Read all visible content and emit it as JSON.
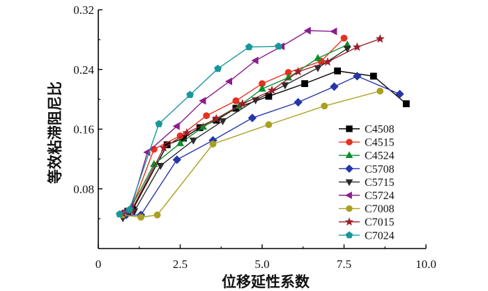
{
  "chart_data": {
    "type": "line",
    "title": "",
    "xlabel": "位移延性系数",
    "ylabel": "等效粘滞阻尼比",
    "xlim": [
      0,
      10.0
    ],
    "ylim": [
      0,
      0.32
    ],
    "xticks": [
      "0",
      "2.5",
      "5.0",
      "7.5",
      "10.0"
    ],
    "xtick_values": [
      0,
      2.5,
      5.0,
      7.5,
      10.0
    ],
    "yticks": [
      "0.08",
      "0.16",
      "0.24",
      "0.32"
    ],
    "ytick_values": [
      0.08,
      0.16,
      0.24,
      0.32
    ],
    "grid": false,
    "legend_position": "lower-right",
    "series": [
      {
        "name": "C4508",
        "color": "#000000",
        "marker": "square",
        "x": [
          0.9,
          1.05,
          2.1,
          2.6,
          3.1,
          3.6,
          4.2,
          5.2,
          6.3,
          7.3,
          8.4,
          9.4
        ],
        "y": [
          0.05,
          0.052,
          0.139,
          0.148,
          0.162,
          0.172,
          0.188,
          0.204,
          0.221,
          0.238,
          0.231,
          0.194
        ]
      },
      {
        "name": "C4515",
        "color": "#e8301e",
        "marker": "circle",
        "x": [
          0.75,
          1.0,
          1.7,
          2.5,
          3.3,
          4.2,
          5.0,
          5.8,
          6.8,
          7.5
        ],
        "y": [
          0.047,
          0.052,
          0.133,
          0.151,
          0.178,
          0.198,
          0.221,
          0.236,
          0.251,
          0.282
        ]
      },
      {
        "name": "C4524",
        "color": "#0a8f2a",
        "marker": "triangle-up",
        "x": [
          0.75,
          1.0,
          1.7,
          2.5,
          3.2,
          4.3,
          5.0,
          5.8,
          6.7,
          7.6
        ],
        "y": [
          0.047,
          0.055,
          0.113,
          0.141,
          0.163,
          0.191,
          0.214,
          0.229,
          0.255,
          0.273
        ]
      },
      {
        "name": "C5708",
        "color": "#2536a8",
        "marker": "diamond",
        "x": [
          0.85,
          1.3,
          2.4,
          3.5,
          4.7,
          6.1,
          7.2,
          7.9,
          9.2
        ],
        "y": [
          0.045,
          0.045,
          0.119,
          0.145,
          0.175,
          0.196,
          0.217,
          0.231,
          0.207
        ]
      },
      {
        "name": "C5715",
        "color": "#2a2a2a",
        "marker": "triangle-down",
        "x": [
          0.75,
          1.1,
          1.9,
          2.9,
          3.8,
          4.8,
          5.7,
          6.7,
          7.6
        ],
        "y": [
          0.041,
          0.05,
          0.111,
          0.145,
          0.171,
          0.199,
          0.219,
          0.242,
          0.268
        ]
      },
      {
        "name": "C5724",
        "color": "#8b1c8e",
        "marker": "triangle-left",
        "x": [
          0.75,
          1.0,
          1.5,
          2.4,
          3.2,
          4.0,
          4.8,
          5.6,
          6.4,
          7.2
        ],
        "y": [
          0.048,
          0.054,
          0.129,
          0.164,
          0.198,
          0.224,
          0.252,
          0.271,
          0.292,
          0.291
        ]
      },
      {
        "name": "C7008",
        "color": "#a8a020",
        "marker": "circle",
        "x": [
          0.75,
          1.3,
          1.8,
          3.5,
          5.2,
          6.9,
          8.6
        ],
        "y": [
          0.045,
          0.042,
          0.045,
          0.14,
          0.166,
          0.191,
          0.211
        ]
      },
      {
        "name": "C7015",
        "color": "#9e1e28",
        "marker": "star",
        "x": [
          0.75,
          1.0,
          2.0,
          2.7,
          3.6,
          4.4,
          5.3,
          6.1,
          7.0,
          7.9,
          8.6
        ],
        "y": [
          0.047,
          0.05,
          0.135,
          0.155,
          0.174,
          0.194,
          0.212,
          0.237,
          0.25,
          0.27,
          0.281
        ]
      },
      {
        "name": "C7024",
        "color": "#17979a",
        "marker": "pentagon",
        "x": [
          0.65,
          0.95,
          1.85,
          2.8,
          3.65,
          4.6,
          5.5
        ],
        "y": [
          0.046,
          0.052,
          0.167,
          0.206,
          0.241,
          0.27,
          0.271
        ]
      }
    ]
  }
}
